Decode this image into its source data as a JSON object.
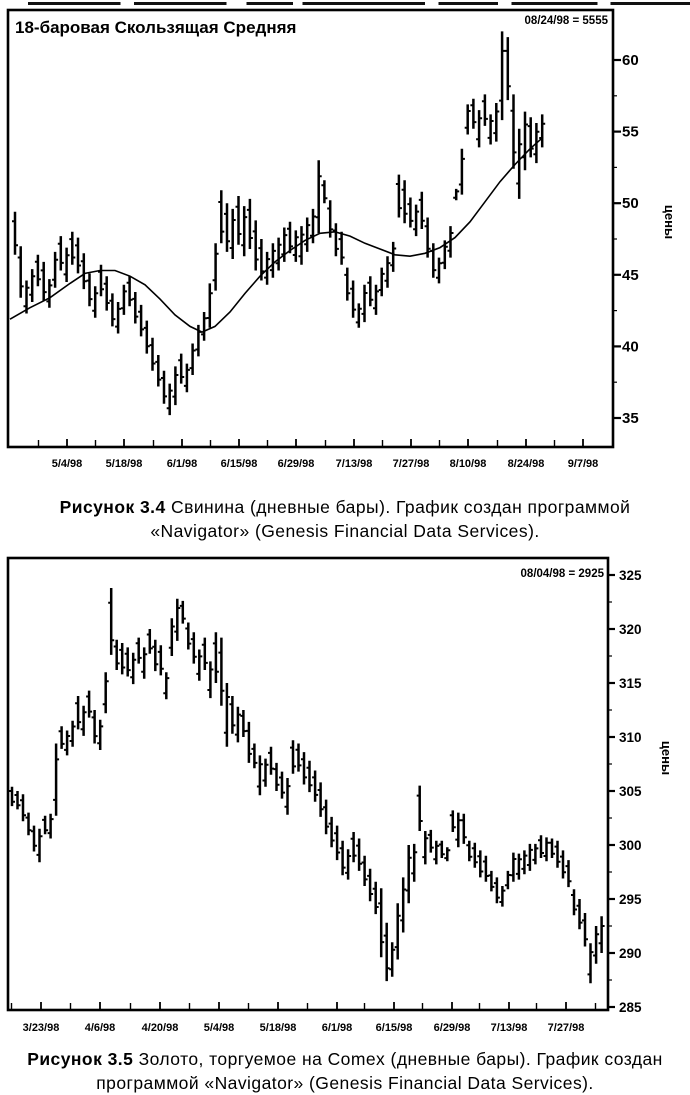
{
  "figure_captions": [
    {
      "label": "Рисунок 3.4",
      "line1": "Свинина (дневные бары). График создан программой",
      "line2": "«Navigator» (Genesis Financial Data Services)."
    },
    {
      "label": "Рисунок 3.5",
      "line1": "Золото, торгуемое на Comex (дневные бары). График создан",
      "line2": "программой «Navigator» (Genesis Financial Data Services)."
    }
  ],
  "chart_data": [
    {
      "type": "ohlc-bar",
      "name": "pork-daily-bars",
      "title": "18-баровая Скользящая Средняя",
      "corner_label": "08/24/98 = 5555",
      "ylabel": "цены",
      "yticks": [
        35,
        40,
        45,
        50,
        55,
        60
      ],
      "ylim": [
        33.0,
        63.5
      ],
      "xticklabels": [
        "5/4/98",
        "5/18/98",
        "6/1/98",
        "6/15/98",
        "6/29/98",
        "7/13/98",
        "7/27/98",
        "8/10/98",
        "8/24/98",
        "9/7/98"
      ],
      "last_close": 55.55,
      "bars": [
        [
          49.4,
          46.4
        ],
        [
          47.0,
          43.4
        ],
        [
          44.6,
          42.3
        ],
        [
          45.4,
          43.1
        ],
        [
          46.4,
          44.2
        ],
        [
          45.9,
          43.2
        ],
        [
          44.7,
          42.7
        ],
        [
          46.6,
          44.1
        ],
        [
          47.7,
          45.3
        ],
        [
          46.9,
          44.5
        ],
        [
          48.0,
          45.7
        ],
        [
          47.6,
          45.1
        ],
        [
          46.5,
          44.0
        ],
        [
          45.1,
          42.8
        ],
        [
          44.2,
          42.0
        ],
        [
          45.7,
          43.5
        ],
        [
          44.9,
          42.5
        ],
        [
          43.7,
          41.4
        ],
        [
          43.1,
          40.9
        ],
        [
          44.3,
          42.2
        ],
        [
          44.9,
          42.8
        ],
        [
          43.8,
          41.6
        ],
        [
          42.9,
          40.7
        ],
        [
          41.8,
          39.5
        ],
        [
          40.6,
          38.3
        ],
        [
          39.4,
          37.2
        ],
        [
          38.3,
          36.0
        ],
        [
          37.4,
          35.2
        ],
        [
          38.6,
          35.9
        ],
        [
          39.5,
          37.4
        ],
        [
          38.8,
          36.8
        ],
        [
          40.2,
          38.0
        ],
        [
          41.5,
          39.3
        ],
        [
          42.4,
          40.4
        ],
        [
          44.4,
          41.3
        ],
        [
          47.2,
          43.9
        ],
        [
          50.9,
          47.2
        ],
        [
          50.0,
          46.6
        ],
        [
          49.6,
          46.1
        ],
        [
          50.5,
          47.1
        ],
        [
          49.8,
          46.3
        ],
        [
          50.3,
          46.8
        ],
        [
          48.8,
          45.3
        ],
        [
          47.5,
          44.6
        ],
        [
          46.6,
          44.3
        ],
        [
          47.2,
          44.8
        ],
        [
          47.6,
          45.3
        ],
        [
          48.3,
          45.9
        ],
        [
          48.7,
          46.5
        ],
        [
          48.1,
          45.9
        ],
        [
          48.4,
          45.7
        ],
        [
          49.0,
          46.6
        ],
        [
          49.6,
          47.2
        ],
        [
          53.0,
          47.9
        ],
        [
          51.6,
          50.0
        ],
        [
          50.2,
          47.6
        ],
        [
          48.6,
          46.3
        ],
        [
          48.0,
          45.7
        ],
        [
          45.5,
          43.2
        ],
        [
          44.6,
          42.0
        ],
        [
          43.0,
          41.3
        ],
        [
          44.3,
          41.7
        ],
        [
          44.9,
          42.8
        ],
        [
          44.3,
          42.2
        ],
        [
          45.5,
          43.5
        ],
        [
          46.3,
          44.1
        ],
        [
          47.3,
          45.2
        ],
        [
          52.0,
          49.0
        ],
        [
          51.6,
          48.6
        ],
        [
          50.4,
          48.3
        ],
        [
          49.9,
          47.7
        ],
        [
          50.8,
          48.2
        ],
        [
          49.0,
          46.2
        ],
        [
          47.2,
          44.8
        ],
        [
          46.2,
          44.4
        ],
        [
          47.4,
          45.4
        ],
        [
          48.4,
          46.2
        ],
        [
          51.0,
          50.2
        ],
        [
          53.8,
          50.6
        ],
        [
          56.9,
          54.8
        ],
        [
          57.3,
          55.2
        ],
        [
          56.5,
          53.9
        ],
        [
          57.6,
          55.4
        ],
        [
          56.2,
          54.1
        ],
        [
          57.0,
          54.3
        ],
        [
          62.0,
          55.8
        ],
        [
          61.6,
          57.2
        ],
        [
          57.6,
          52.4
        ],
        [
          55.2,
          50.3
        ],
        [
          56.4,
          52.3
        ],
        [
          56.0,
          53.2
        ],
        [
          55.6,
          52.8
        ],
        [
          56.2,
          53.9
        ]
      ],
      "ma18": [
        [
          10,
          41.9
        ],
        [
          30,
          42.7
        ],
        [
          50,
          43.4
        ],
        [
          70,
          44.4
        ],
        [
          85,
          45.1
        ],
        [
          100,
          45.3
        ],
        [
          115,
          45.3
        ],
        [
          130,
          44.9
        ],
        [
          145,
          44.3
        ],
        [
          160,
          43.3
        ],
        [
          175,
          42.2
        ],
        [
          190,
          41.4
        ],
        [
          202,
          41.0
        ],
        [
          215,
          41.4
        ],
        [
          230,
          42.4
        ],
        [
          245,
          43.7
        ],
        [
          260,
          44.9
        ],
        [
          275,
          45.9
        ],
        [
          290,
          46.7
        ],
        [
          305,
          47.4
        ],
        [
          320,
          47.9
        ],
        [
          335,
          48.0
        ],
        [
          350,
          47.7
        ],
        [
          365,
          47.2
        ],
        [
          380,
          46.8
        ],
        [
          395,
          46.4
        ],
        [
          410,
          46.3
        ],
        [
          425,
          46.5
        ],
        [
          440,
          46.9
        ],
        [
          455,
          47.6
        ],
        [
          470,
          48.7
        ],
        [
          485,
          50.1
        ],
        [
          500,
          51.5
        ],
        [
          515,
          52.7
        ],
        [
          530,
          53.8
        ],
        [
          543,
          54.6
        ]
      ]
    },
    {
      "type": "ohlc-bar",
      "name": "gold-comex-daily-bars",
      "title": "",
      "corner_label": "08/04/98 = 2925",
      "ylabel": "цены",
      "yticks": [
        285,
        290,
        295,
        300,
        305,
        310,
        315,
        320,
        325
      ],
      "ylim": [
        284.7,
        326.6
      ],
      "xticklabels": [
        "3/23/98",
        "4/6/98",
        "4/20/98",
        "5/4/98",
        "5/18/98",
        "6/1/98",
        "6/15/98",
        "6/29/98",
        "7/13/98",
        "7/27/98"
      ],
      "last_close": 292.5,
      "bars": [
        [
          305.4,
          303.6
        ],
        [
          305.0,
          303.3
        ],
        [
          304.7,
          302.2
        ],
        [
          303.0,
          300.9
        ],
        [
          301.8,
          299.4
        ],
        [
          301.5,
          298.4
        ],
        [
          302.7,
          301.0
        ],
        [
          302.9,
          300.6
        ],
        [
          309.4,
          302.7
        ],
        [
          311.0,
          308.9
        ],
        [
          310.6,
          308.3
        ],
        [
          311.5,
          309.1
        ],
        [
          313.8,
          310.7
        ],
        [
          312.9,
          310.1
        ],
        [
          314.3,
          311.8
        ],
        [
          312.5,
          309.4
        ],
        [
          311.6,
          308.8
        ],
        [
          316.0,
          312.2
        ],
        [
          323.8,
          317.6
        ],
        [
          319.0,
          316.2
        ],
        [
          318.7,
          315.8
        ],
        [
          318.3,
          315.6
        ],
        [
          317.8,
          314.9
        ],
        [
          319.2,
          316.8
        ],
        [
          318.3,
          315.4
        ],
        [
          320.0,
          317.7
        ],
        [
          319.0,
          316.1
        ],
        [
          318.5,
          315.7
        ],
        [
          316.0,
          313.5
        ],
        [
          321.0,
          317.5
        ],
        [
          322.8,
          318.9
        ],
        [
          322.6,
          320.5
        ],
        [
          320.6,
          318.1
        ],
        [
          319.7,
          316.8
        ],
        [
          318.1,
          315.2
        ],
        [
          319.2,
          316.2
        ],
        [
          317.0,
          313.6
        ],
        [
          319.7,
          315.0
        ],
        [
          319.2,
          312.9
        ],
        [
          315.0,
          309.1
        ],
        [
          313.8,
          310.3
        ],
        [
          312.8,
          309.5
        ],
        [
          312.5,
          310.0
        ],
        [
          311.4,
          307.6
        ],
        [
          309.4,
          307.1
        ],
        [
          308.3,
          304.6
        ],
        [
          308.0,
          305.4
        ],
        [
          309.1,
          306.5
        ],
        [
          307.6,
          305.0
        ],
        [
          306.8,
          304.3
        ],
        [
          306.2,
          302.8
        ],
        [
          309.7,
          306.6
        ],
        [
          309.4,
          306.8
        ],
        [
          308.6,
          305.6
        ],
        [
          307.8,
          304.9
        ],
        [
          306.9,
          304.0
        ],
        [
          305.8,
          302.6
        ],
        [
          304.2,
          301.0
        ],
        [
          302.6,
          299.8
        ],
        [
          301.8,
          298.6
        ],
        [
          300.4,
          297.2
        ],
        [
          299.6,
          296.8
        ],
        [
          301.2,
          298.4
        ],
        [
          300.6,
          297.6
        ],
        [
          299.0,
          296.2
        ],
        [
          297.8,
          294.8
        ],
        [
          296.6,
          293.6
        ],
        [
          296.0,
          289.6
        ],
        [
          292.8,
          287.4
        ],
        [
          291.0,
          287.8
        ],
        [
          294.6,
          289.4
        ],
        [
          297.0,
          291.9
        ],
        [
          300.0,
          294.6
        ],
        [
          300.1,
          296.6
        ],
        [
          305.5,
          301.3
        ],
        [
          301.3,
          298.2
        ],
        [
          301.4,
          299.3
        ],
        [
          300.4,
          298.2
        ],
        [
          300.4,
          298.8
        ],
        [
          299.8,
          298.5
        ],
        [
          303.2,
          301.2
        ],
        [
          303.0,
          299.8
        ],
        [
          302.9,
          300.1
        ],
        [
          300.4,
          298.5
        ],
        [
          300.2,
          297.9
        ],
        [
          299.5,
          297.0
        ],
        [
          299.0,
          296.6
        ],
        [
          297.6,
          295.7
        ],
        [
          297.0,
          294.6
        ],
        [
          296.2,
          294.3
        ],
        [
          297.6,
          295.9
        ],
        [
          299.3,
          296.6
        ],
        [
          299.2,
          296.8
        ],
        [
          299.5,
          297.3
        ],
        [
          300.1,
          297.6
        ],
        [
          300.1,
          298.2
        ],
        [
          300.9,
          298.8
        ],
        [
          300.7,
          298.5
        ],
        [
          300.6,
          298.8
        ],
        [
          300.4,
          297.9
        ],
        [
          299.5,
          296.9
        ],
        [
          298.6,
          296.1
        ],
        [
          295.9,
          293.5
        ],
        [
          295.0,
          292.2
        ],
        [
          293.7,
          290.6
        ],
        [
          290.9,
          287.2
        ],
        [
          292.5,
          289.0
        ],
        [
          293.4,
          290.0
        ]
      ]
    }
  ]
}
